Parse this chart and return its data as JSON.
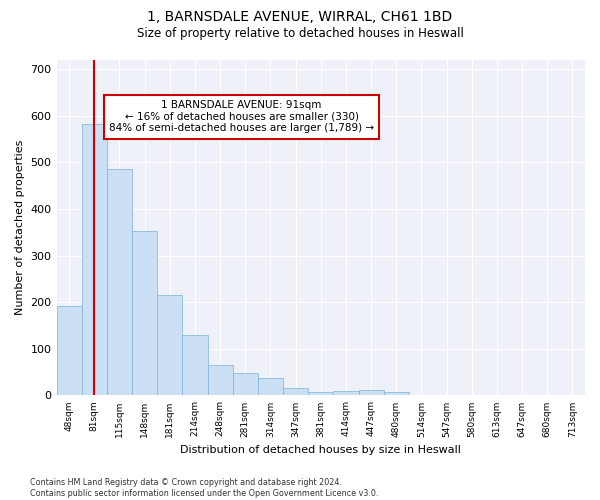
{
  "title": "1, BARNSDALE AVENUE, WIRRAL, CH61 1BD",
  "subtitle": "Size of property relative to detached houses in Heswall",
  "xlabel": "Distribution of detached houses by size in Heswall",
  "ylabel": "Number of detached properties",
  "categories": [
    "48sqm",
    "81sqm",
    "115sqm",
    "148sqm",
    "181sqm",
    "214sqm",
    "248sqm",
    "281sqm",
    "314sqm",
    "347sqm",
    "381sqm",
    "414sqm",
    "447sqm",
    "480sqm",
    "514sqm",
    "547sqm",
    "580sqm",
    "613sqm",
    "647sqm",
    "680sqm",
    "713sqm"
  ],
  "values": [
    193,
    583,
    485,
    353,
    216,
    130,
    65,
    49,
    37,
    15,
    8,
    10,
    11,
    7,
    0,
    0,
    0,
    0,
    0,
    0,
    0
  ],
  "bar_color": "#cce0f5",
  "bar_edgecolor": "#7ab4d8",
  "vline_x_index": 1,
  "vline_color": "#cc0000",
  "annotation_text": "1 BARNSDALE AVENUE: 91sqm\n← 16% of detached houses are smaller (330)\n84% of semi-detached houses are larger (1,789) →",
  "annotation_box_edgecolor": "#cc0000",
  "background_color": "#eef2f8",
  "ylim": [
    0,
    720
  ],
  "yticks": [
    0,
    100,
    200,
    300,
    400,
    500,
    600,
    700
  ],
  "footer": "Contains HM Land Registry data © Crown copyright and database right 2024.\nContains public sector information licensed under the Open Government Licence v3.0."
}
